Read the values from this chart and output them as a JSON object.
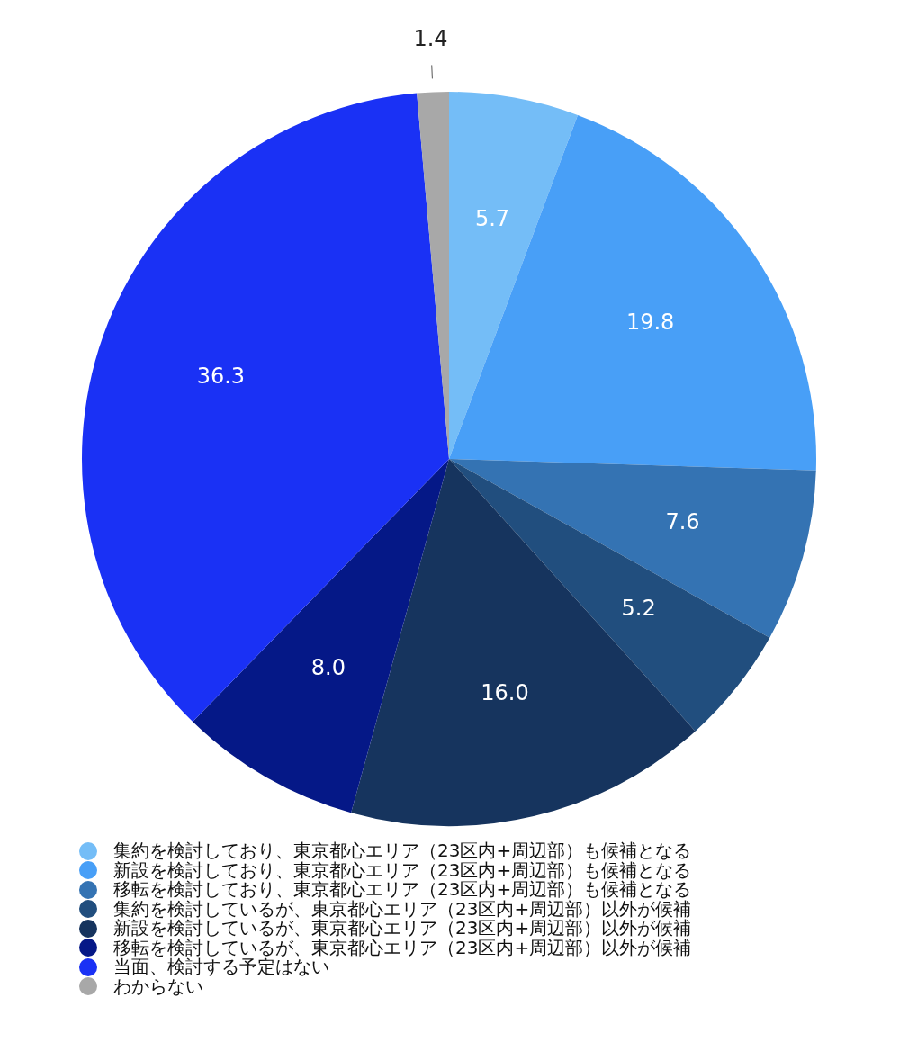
{
  "chart_data": {
    "type": "pie",
    "categories": [
      "集約を検討しており、東京都心エリア（23区内+周辺部）も候補となる",
      "新設を検討しており、東京都心エリア（23区内+周辺部）も候補となる",
      "移転を検討しており、東京都心エリア（23区内+周辺部）も候補となる",
      "集約を検討しているが、東京都心エリア（23区内+周辺部）以外が候補",
      "新設を検討しているが、東京都心エリア（23区内+周辺部）以外が候補",
      "移転を検討しているが、東京都心エリア（23区内+周辺部）以外が候補",
      "当面、検討する予定はない",
      "わからない"
    ],
    "values": [
      5.7,
      19.8,
      7.6,
      5.2,
      16.0,
      8.0,
      36.3,
      1.4
    ],
    "value_labels": [
      "5.7",
      "19.8",
      "7.6",
      "5.2",
      "16.0",
      "8.0",
      "36.3",
      "1.4"
    ],
    "colors": [
      "#74bdf7",
      "#489ff7",
      "#3473b3",
      "#214e7e",
      "#16345e",
      "#051887",
      "#1a31f5",
      "#a8a8a8"
    ],
    "legend": "bottom"
  }
}
